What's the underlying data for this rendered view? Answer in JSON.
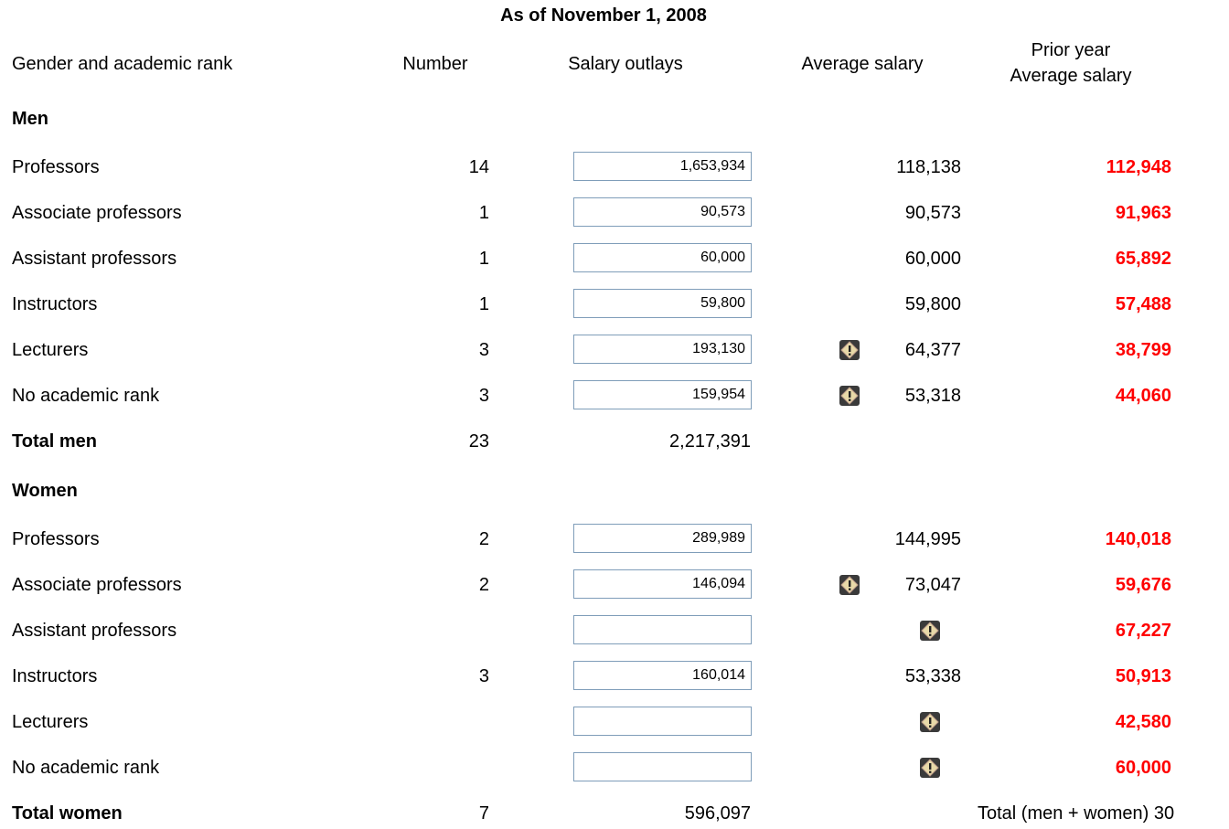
{
  "title": "As of November 1, 2008",
  "headers": {
    "rank": "Gender and academic rank",
    "number": "Number",
    "salary": "Salary outlays",
    "average": "Average salary",
    "prior": [
      "Prior year",
      "Average salary"
    ]
  },
  "sections": [
    {
      "name": "Men",
      "rows": [
        {
          "label": "Professors",
          "number": "14",
          "salary": "1,653,934",
          "average": "118,138",
          "prior": "112,948"
        },
        {
          "label": "Associate professors",
          "number": "1",
          "salary": "90,573",
          "average": "90,573",
          "prior": "91,963"
        },
        {
          "label": "Assistant professors",
          "number": "1",
          "salary": "60,000",
          "average": "60,000",
          "prior": "65,892"
        },
        {
          "label": "Instructors",
          "number": "1",
          "salary": "59,800",
          "average": "59,800",
          "prior": "57,488"
        },
        {
          "label": "Lecturers",
          "number": "3",
          "salary": "193,130",
          "average": "64,377",
          "prior": "38,799",
          "warning": true
        },
        {
          "label": "No academic rank",
          "number": "3",
          "salary": "159,954",
          "average": "53,318",
          "prior": "44,060",
          "warning": true
        }
      ],
      "total": {
        "label": "Total men",
        "number": "23",
        "salary": "2,217,391"
      }
    },
    {
      "name": "Women",
      "rows": [
        {
          "label": "Professors",
          "number": "2",
          "salary": "289,989",
          "average": "144,995",
          "prior": "140,018"
        },
        {
          "label": "Associate professors",
          "number": "2",
          "salary": "146,094",
          "average": "73,047",
          "prior": "59,676",
          "warning": true
        },
        {
          "label": "Assistant professors",
          "prior": "67,227",
          "warning": true
        },
        {
          "label": "Instructors",
          "number": "3",
          "salary": "160,014",
          "average": "53,338",
          "prior": "50,913"
        },
        {
          "label": "Lecturers",
          "prior": "42,580",
          "warning": true
        },
        {
          "label": "No academic rank",
          "prior": "60,000",
          "warning": true
        }
      ],
      "total": {
        "label": "Total women",
        "number": "7",
        "salary": "596,097"
      }
    }
  ],
  "grand_total": {
    "label": "Total (men + women)",
    "value": "30"
  }
}
